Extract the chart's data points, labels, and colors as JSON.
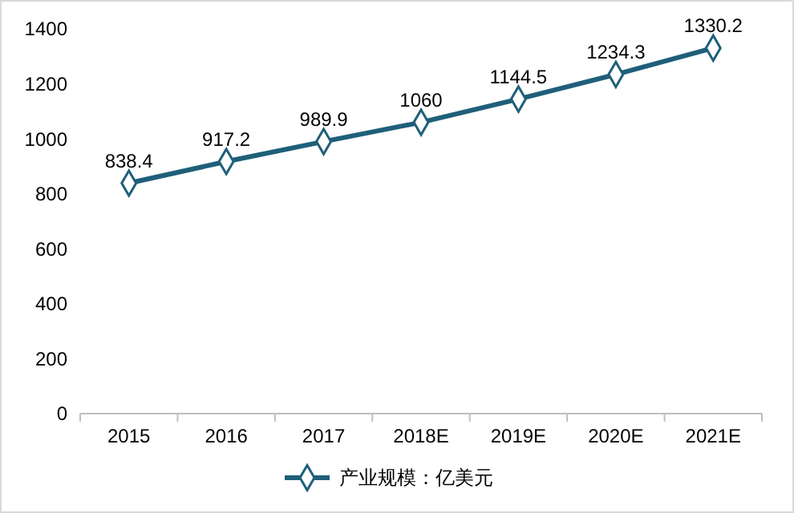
{
  "chart_data": {
    "type": "line",
    "categories": [
      "2015",
      "2016",
      "2017",
      "2018E",
      "2019E",
      "2020E",
      "2021E"
    ],
    "series": [
      {
        "name": "产业规模：亿美元",
        "color": "#1f5f7a",
        "values": [
          838.4,
          917.2,
          989.9,
          1060,
          1144.5,
          1234.3,
          1330.2
        ]
      }
    ],
    "ylim": [
      0,
      1400
    ],
    "yticks": [
      0,
      200,
      400,
      600,
      800,
      1000,
      1200,
      1400
    ],
    "grid": false,
    "legend": "bottom",
    "marker": "diamond",
    "line_style": "solid",
    "data_labels": true
  }
}
